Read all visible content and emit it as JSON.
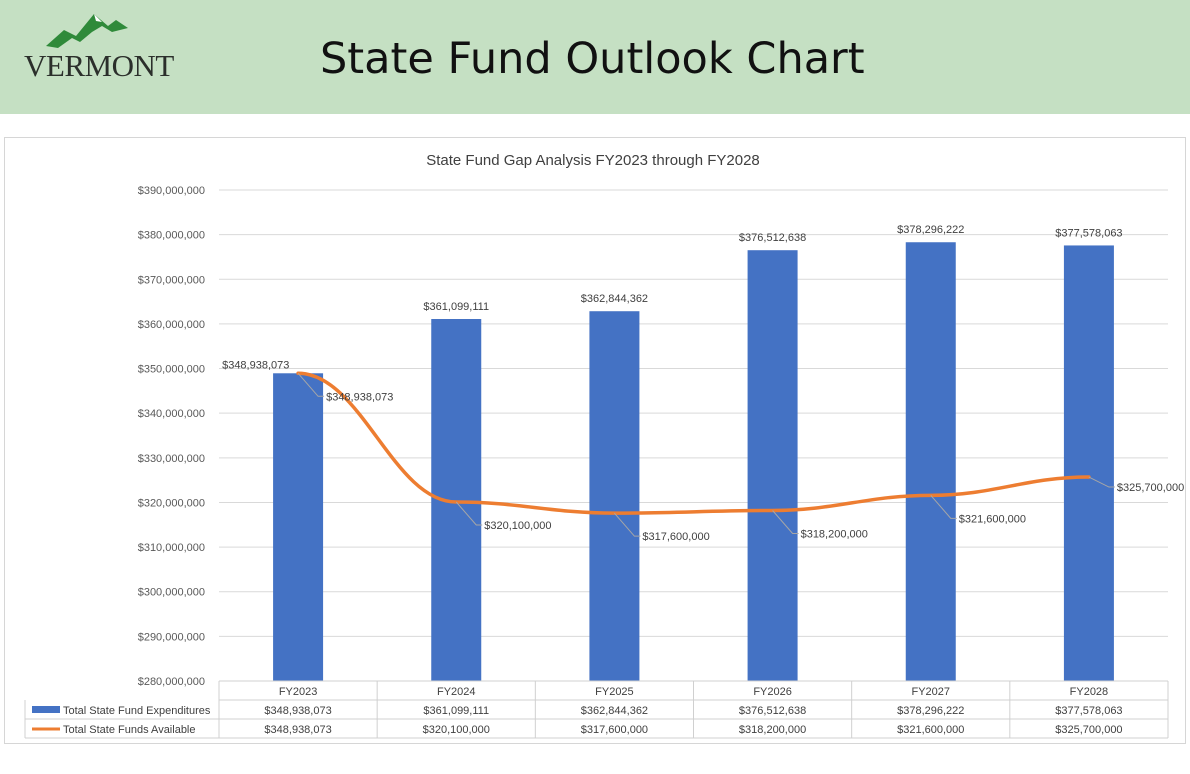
{
  "header": {
    "logo_text": "VERMONT",
    "title": "State Fund Outlook Chart",
    "background_color": "#c5e0c3"
  },
  "chart_data": {
    "type": "bar",
    "title": "State Fund Gap Analysis FY2023 through FY2028",
    "categories": [
      "FY2023",
      "FY2024",
      "FY2025",
      "FY2026",
      "FY2027",
      "FY2028"
    ],
    "ylim": [
      280000000,
      390000000
    ],
    "ytick_step": 10000000,
    "y_tick_labels": [
      "$280,000,000",
      "$290,000,000",
      "$300,000,000",
      "$310,000,000",
      "$320,000,000",
      "$330,000,000",
      "$340,000,000",
      "$350,000,000",
      "$360,000,000",
      "$370,000,000",
      "$380,000,000",
      "$390,000,000"
    ],
    "grid": true,
    "legend": "data-table",
    "series": [
      {
        "name": "Total State Fund Expenditures",
        "type": "bar",
        "color": "#4472c4",
        "values": [
          348938073,
          361099111,
          362844362,
          376512638,
          378296222,
          377578063
        ],
        "labels": [
          "$348,938,073",
          "$361,099,111",
          "$362,844,362",
          "$376,512,638",
          "$378,296,222",
          "$377,578,063"
        ]
      },
      {
        "name": "Total State Funds Available",
        "type": "line",
        "color": "#ed7d31",
        "values": [
          348938073,
          320100000,
          317600000,
          318200000,
          321600000,
          325700000
        ],
        "labels": [
          "$348,938,073",
          "$320,100,000",
          "$317,600,000",
          "$318,200,000",
          "$321,600,000",
          "$325,700,000"
        ]
      }
    ]
  }
}
